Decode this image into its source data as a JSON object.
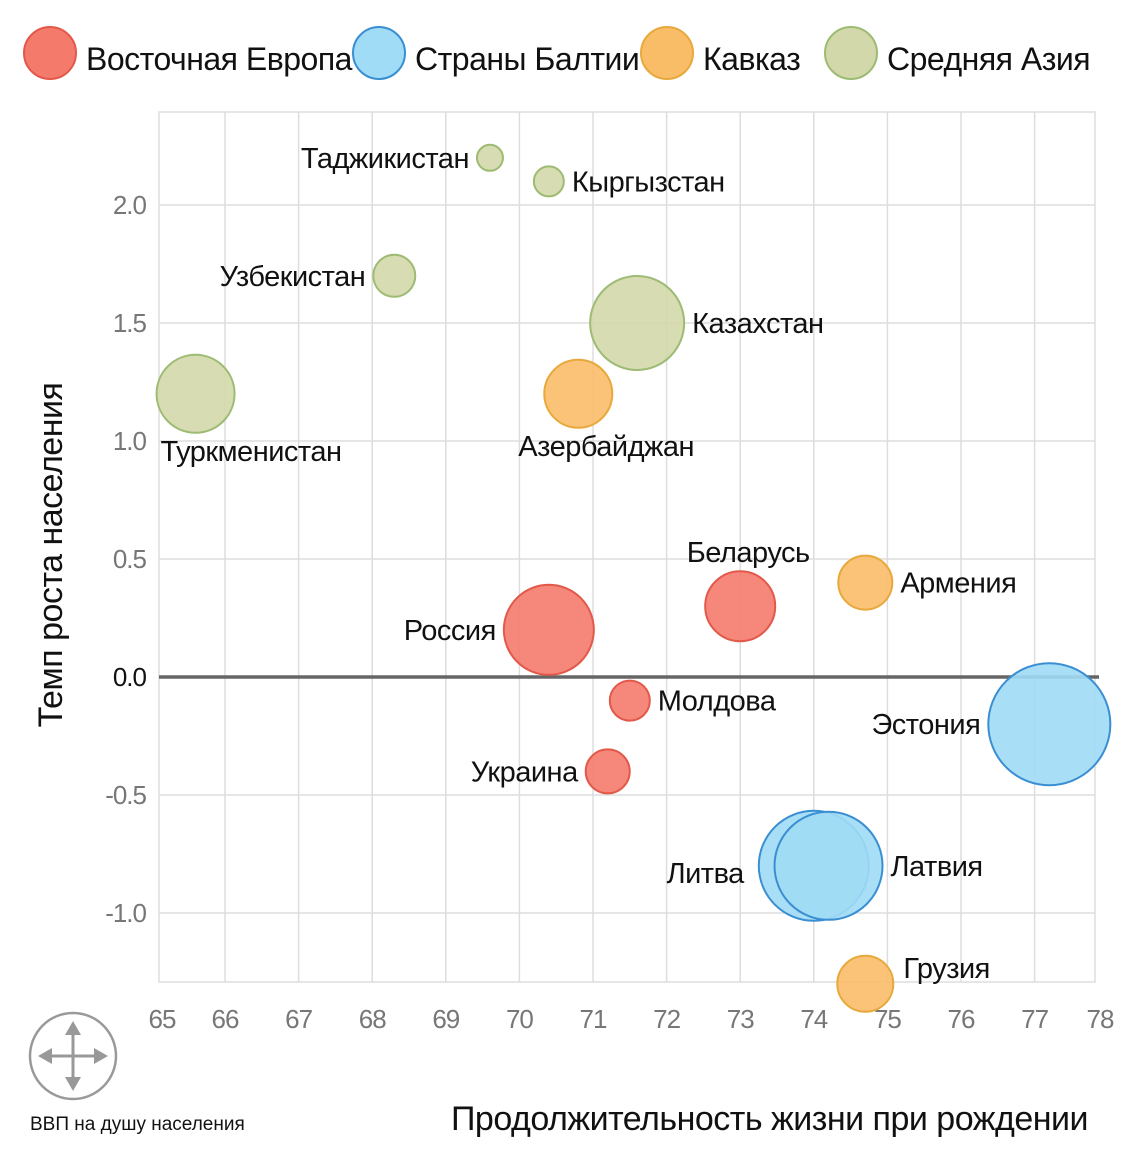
{
  "chart_data": {
    "type": "scatter",
    "variant": "bubble",
    "xlabel": "Продолжительность жизни при рождении",
    "ylabel": "Темп роста населения",
    "size_label": "ВВП на душу населения",
    "xlim": [
      65.1,
      77.8
    ],
    "ylim": [
      -1.29,
      2.39
    ],
    "x_ticks": [
      65,
      66,
      67,
      68,
      69,
      70,
      71,
      72,
      73,
      74,
      75,
      76,
      77,
      78
    ],
    "y_ticks": [
      -1.0,
      -0.5,
      0.0,
      0.5,
      1.0,
      1.5,
      2.0
    ],
    "y_tick_labels": [
      "-1.0",
      "-0.5",
      "0.0",
      "0.5",
      "1.0",
      "1.5",
      "2.0"
    ],
    "grid": true,
    "zero_line": true,
    "legend_position": "top",
    "groups": [
      {
        "name": "Восточная Европа",
        "fill": "#f47b6c",
        "stroke": "#e2594a"
      },
      {
        "name": "Страны Балтии",
        "fill": "#a0dcf5",
        "stroke": "#3a8ed2"
      },
      {
        "name": "Кавказ",
        "fill": "#f9bd68",
        "stroke": "#e8a93c"
      },
      {
        "name": "Средняя Азия",
        "fill": "#d3d8aa",
        "stroke": "#9dbb73"
      }
    ],
    "points": [
      {
        "label": "Таджикистан",
        "group": 3,
        "x": 69.6,
        "y": 2.2,
        "size": 13,
        "label_side": "left"
      },
      {
        "label": "Кыргызстан",
        "group": 3,
        "x": 70.4,
        "y": 2.1,
        "size": 15,
        "label_side": "right"
      },
      {
        "label": "Узбекистан",
        "group": 3,
        "x": 68.3,
        "y": 1.7,
        "size": 21,
        "label_side": "left"
      },
      {
        "label": "Казахстан",
        "group": 3,
        "x": 71.6,
        "y": 1.5,
        "size": 47,
        "label_side": "right"
      },
      {
        "label": "Туркменистан",
        "group": 3,
        "x": 65.6,
        "y": 1.2,
        "size": 39,
        "label_side": "below"
      },
      {
        "label": "Азербайджан",
        "group": 2,
        "x": 70.8,
        "y": 1.2,
        "size": 34,
        "label_side": "below"
      },
      {
        "label": "Беларусь",
        "group": 0,
        "x": 73.0,
        "y": 0.3,
        "size": 35,
        "label_side": "above"
      },
      {
        "label": "Армения",
        "group": 2,
        "x": 74.7,
        "y": 0.4,
        "size": 27,
        "label_side": "right"
      },
      {
        "label": "Россия",
        "group": 0,
        "x": 70.4,
        "y": 0.2,
        "size": 45,
        "label_side": "left"
      },
      {
        "label": "Молдова",
        "group": 0,
        "x": 71.5,
        "y": -0.1,
        "size": 20,
        "label_side": "right"
      },
      {
        "label": "Украина",
        "group": 0,
        "x": 71.2,
        "y": -0.4,
        "size": 22,
        "label_side": "left"
      },
      {
        "label": "Эстония",
        "group": 1,
        "x": 77.2,
        "y": -0.2,
        "size": 61,
        "label_side": "left"
      },
      {
        "label": "Литва",
        "group": 1,
        "x": 74.0,
        "y": -0.8,
        "size": 55,
        "label_side": "left"
      },
      {
        "label": "Латвия",
        "group": 1,
        "x": 74.2,
        "y": -0.8,
        "size": 54,
        "label_side": "right"
      },
      {
        "label": "Грузия",
        "group": 2,
        "x": 74.7,
        "y": -1.3,
        "size": 28,
        "label_side": "right-above"
      }
    ]
  }
}
